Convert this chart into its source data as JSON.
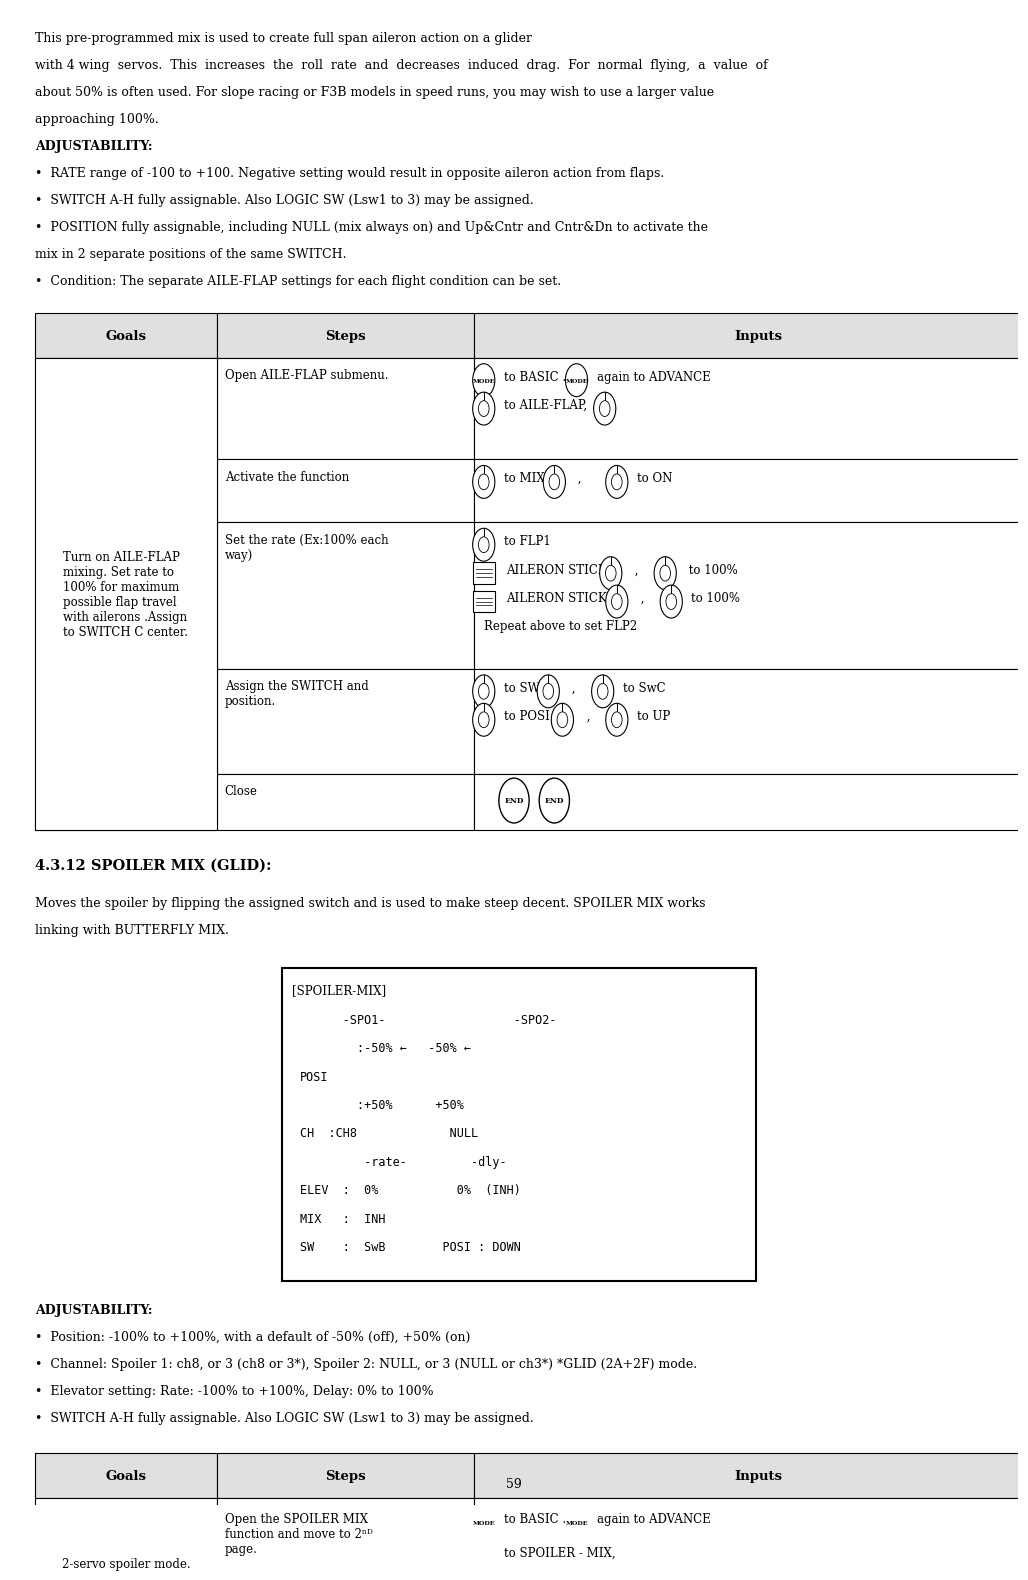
{
  "bg_color": "#ffffff",
  "text_color": "#000000",
  "page_number": "59",
  "intro_text": [
    "This pre-programmed mix is used to create full span aileron action on a glider",
    "with 4 wing  servos.  This  increases  the  roll  rate  and  decreases  induced  drag.  For  normal  flying,  a  value  of",
    "about 50% is often used. For slope racing or F3B models in speed runs, you may wish to use a larger value",
    "approaching 100%.",
    "ADJUSTABILITY:",
    "•  RATE range of -100 to +100. Negative setting would result in opposite aileron action from flaps.",
    "•  SWITCH A-H fully assignable. Also LOGIC SW (Lsw1 to 3) may be assigned.",
    "•  POSITION fully assignable, including NULL (mix always on) and Up&Cntr and Cntr&Dn to activate the",
    "mix in 2 separate positions of the same SWITCH.",
    "•  Condition: The separate AILE-FLAP settings for each flight condition can be set."
  ],
  "table1_headers": [
    "Goals",
    "Steps",
    "Inputs"
  ],
  "section2_title": "4.3.12 SPOILER MIX (GLID):",
  "section2_text": [
    "Moves the spoiler by flipping the assigned switch and is used to make steep decent. SPOILER MIX works",
    "linking with BUTTERFLY MIX."
  ],
  "spoiler_box_title": "[SPOILER-MIX]",
  "spoiler_box_lines": [
    "      -SPO1-                  -SPO2-",
    "        :-50% ←   -50% ←",
    "POSI",
    "        :+50%      +50%",
    "CH  :CH8             NULL",
    "         -rate-         -dly-",
    "ELEV  :  0%           0%  (INH)",
    "MIX   :  INH",
    "SW    :  SwB        POSI : DOWN"
  ],
  "adj2_text": [
    "ADJUSTABILITY:",
    "•  Position: -100% to +100%, with a default of -50% (off), +50% (on)",
    "•  Channel: Spoiler 1: ch8, or 3 (ch8 or 3*), Spoiler 2: NULL, or 3 (NULL or ch3*) *GLID (2A+2F) mode.",
    "•  Elevator setting: Rate: -100% to +100%, Delay: 0% to 100%",
    "•  SWITCH A-H fully assignable. Also LOGIC SW (Lsw1 to 3) may be assigned."
  ],
  "table2_headers": [
    "Goals",
    "Steps",
    "Inputs"
  ],
  "goals_text": "Turn on AILE-FLAP\nmixing. Set rate to\n100% for maximum\npossible flap travel\nwith ailerons .Assign\nto SWITCH C center.",
  "goals2_text": "2-servo spoiler mode."
}
